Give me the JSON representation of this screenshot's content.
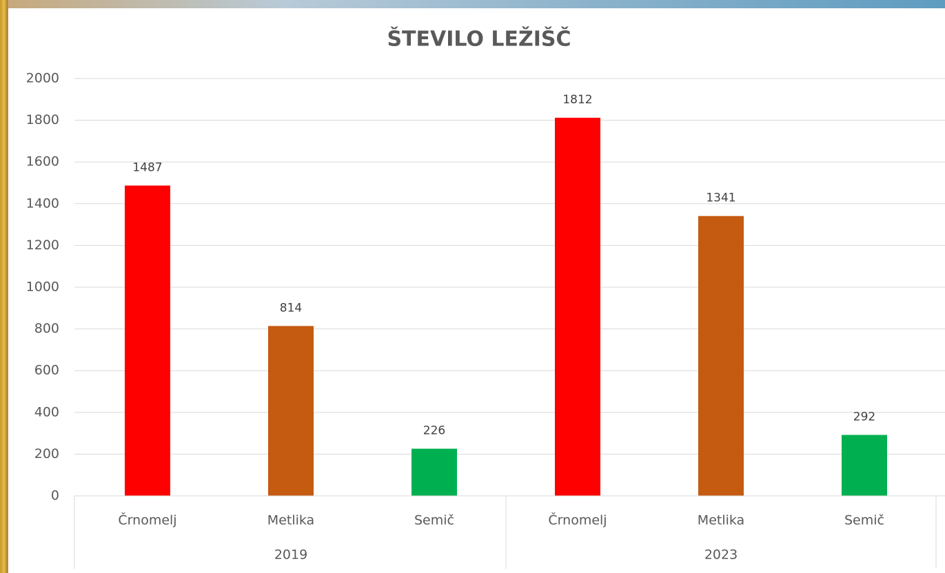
{
  "chart_data": {
    "type": "bar",
    "title": "ŠTEVILO LEŽIŠČ",
    "groups": [
      {
        "name": "2019",
        "categories": [
          "Črnomelj",
          "Metlika",
          "Semič"
        ],
        "values": [
          1487,
          814,
          226
        ]
      },
      {
        "name": "2023",
        "categories": [
          "Črnomelj",
          "Metlika",
          "Semič"
        ],
        "values": [
          1812,
          1341,
          292
        ]
      }
    ],
    "colors": [
      "#ff0000",
      "#c55a11",
      "#00b050"
    ],
    "ylim": [
      0,
      2000
    ],
    "yticks": [
      0,
      200,
      400,
      600,
      800,
      1000,
      1200,
      1400,
      1600,
      1800,
      2000
    ],
    "grid": true
  }
}
